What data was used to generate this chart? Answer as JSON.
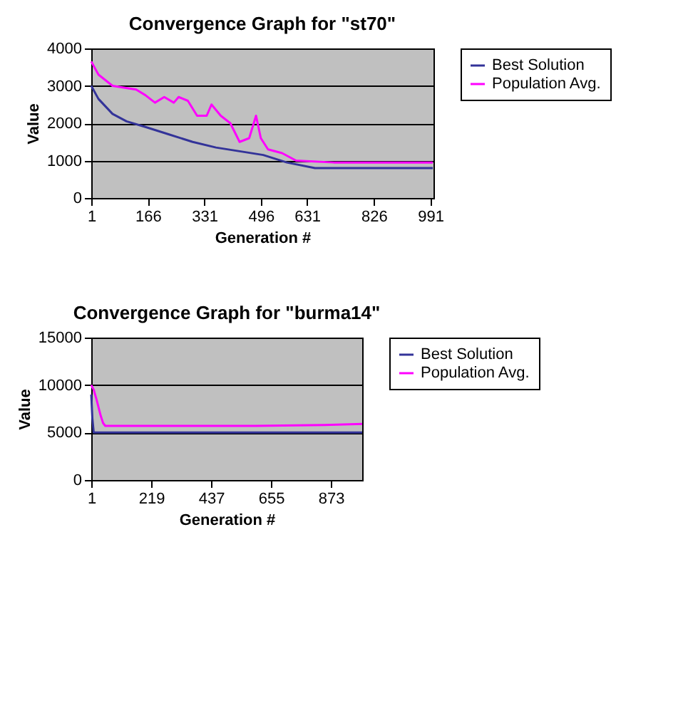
{
  "chart_data": [
    {
      "type": "line",
      "title": "Convergence Graph for \"st70\"",
      "xlabel": "Generation #",
      "ylabel": "Value",
      "xlim": [
        1,
        1000
      ],
      "xticks": [
        1,
        166,
        331,
        496,
        631,
        826,
        991
      ],
      "ylim": [
        0,
        4000
      ],
      "yticks": [
        0,
        1000,
        2000,
        3000,
        4000
      ],
      "grid": "y",
      "legend": "right",
      "marker": "none",
      "line_style": "solid",
      "series": [
        {
          "name": "Best Solution",
          "color": "#333399",
          "x": [
            1,
            22,
            63,
            104,
            159,
            228,
            297,
            365,
            434,
            503,
            572,
            654,
            998
          ],
          "values": [
            3000,
            2650,
            2250,
            2050,
            1900,
            1700,
            1500,
            1350,
            1250,
            1150,
            950,
            800,
            800
          ]
        },
        {
          "name": "Population Avg.",
          "color": "#ff00ff",
          "x": [
            1,
            22,
            63,
            132,
            159,
            187,
            214,
            242,
            256,
            283,
            310,
            338,
            352,
            379,
            407,
            434,
            462,
            482,
            496,
            517,
            558,
            599,
            709,
            998
          ],
          "values": [
            3650,
            3300,
            3000,
            2900,
            2750,
            2550,
            2700,
            2550,
            2700,
            2600,
            2200,
            2200,
            2500,
            2200,
            2000,
            1500,
            1600,
            2200,
            1600,
            1300,
            1200,
            1000,
            950,
            950
          ]
        }
      ]
    },
    {
      "type": "line",
      "title": "Convergence Graph for \"burma14\"",
      "xlabel": "Generation #",
      "ylabel": "Value",
      "xlim": [
        1,
        987
      ],
      "xticks": [
        1,
        219,
        437,
        655,
        873
      ],
      "ylim": [
        0,
        15000
      ],
      "yticks": [
        0,
        5000,
        10000,
        15000
      ],
      "grid": "y",
      "legend": "right",
      "marker": "none",
      "line_style": "solid",
      "series": [
        {
          "name": "Best Solution",
          "color": "#333399",
          "x": [
            1,
            5,
            10,
            987
          ],
          "values": [
            9000,
            6500,
            5000,
            5000
          ]
        },
        {
          "name": "Population Avg.",
          "color": "#ff00ff",
          "x": [
            1,
            10,
            20,
            35,
            44,
            52,
            300,
            600,
            850,
            987
          ],
          "values": [
            10000,
            9500,
            8500,
            6800,
            6000,
            5700,
            5700,
            5700,
            5800,
            5900
          ]
        }
      ]
    }
  ]
}
